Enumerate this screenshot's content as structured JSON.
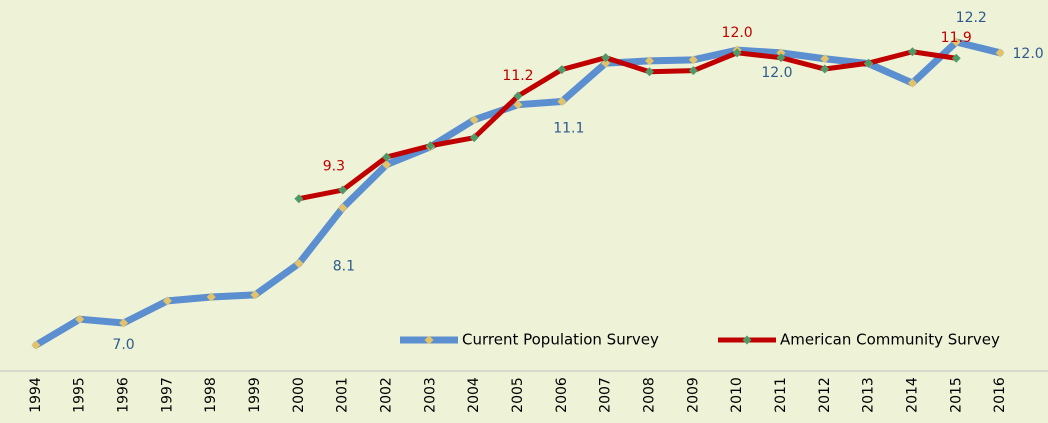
{
  "chart_data": {
    "type": "line",
    "categories": [
      "1994",
      "1995",
      "1996",
      "1997",
      "1998",
      "1999",
      "2000",
      "2001",
      "2002",
      "2003",
      "2004",
      "2005",
      "2006",
      "2007",
      "2008",
      "2009",
      "2010",
      "2011",
      "2012",
      "2013",
      "2014",
      "2015",
      "2016"
    ],
    "series": [
      {
        "name": "Current Population Survey",
        "color": "#5b8fd0",
        "marker_color": "#e2c36a",
        "values": [
          6.59,
          7.07,
          7.0,
          7.41,
          7.48,
          7.52,
          8.1,
          9.13,
          9.93,
          10.26,
          10.76,
          11.04,
          11.1,
          11.81,
          11.85,
          11.87,
          12.05,
          12.0,
          11.89,
          11.8,
          11.44,
          12.2,
          12.0
        ],
        "value_labels": [
          null,
          null,
          "7.0",
          null,
          null,
          null,
          "8.1",
          null,
          null,
          null,
          null,
          null,
          "11.1",
          null,
          null,
          null,
          null,
          "12.0",
          null,
          null,
          null,
          "12.2",
          "12.0"
        ]
      },
      {
        "name": "American Community Survey",
        "color": "#c00000",
        "marker_color": "#4f9a66",
        "values": [
          null,
          null,
          null,
          null,
          null,
          null,
          9.3,
          9.46,
          10.07,
          10.28,
          10.43,
          11.2,
          11.69,
          11.91,
          11.65,
          11.67,
          12.0,
          11.91,
          11.7,
          11.81,
          12.02,
          11.9,
          null
        ],
        "value_labels": [
          null,
          null,
          null,
          null,
          null,
          null,
          "9.3",
          null,
          null,
          null,
          null,
          "11.2",
          null,
          null,
          null,
          null,
          "12.0",
          null,
          null,
          null,
          null,
          "11.9",
          null
        ]
      }
    ],
    "ylim": [
      6.4,
      12.6
    ],
    "grid": false,
    "legend": "bottom-right"
  }
}
